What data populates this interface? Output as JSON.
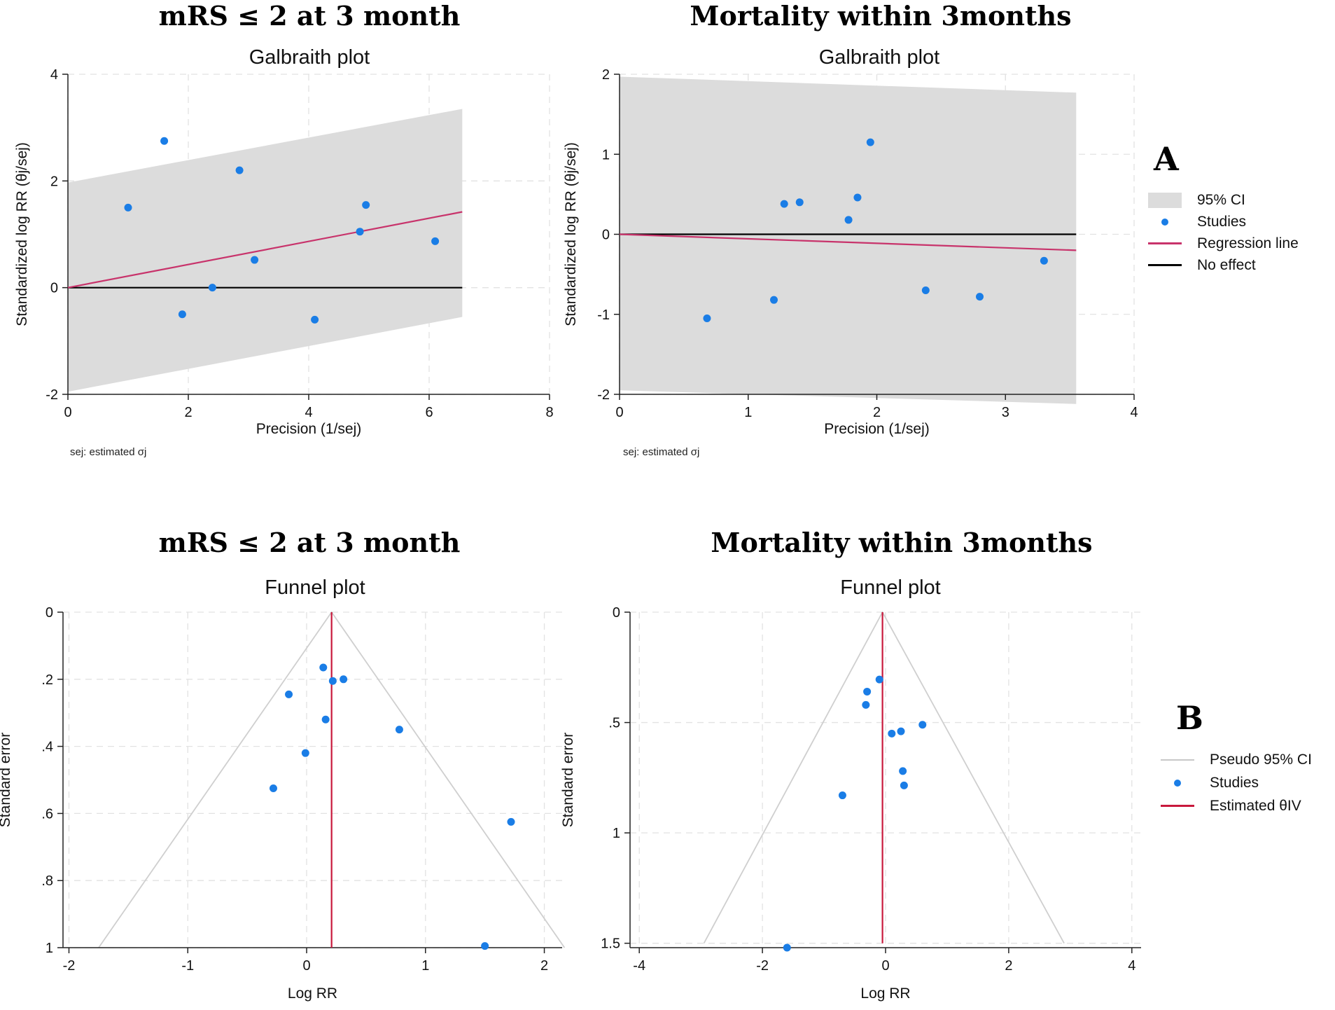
{
  "titles": {
    "top_left": "mRS ≤ 2 at 3 month",
    "top_right": "Mortality within 3months",
    "bottom_left": "mRS ≤ 2 at 3 month",
    "bottom_right": "Mortality within 3months"
  },
  "panel_letters": {
    "a": "A",
    "b": "B"
  },
  "legend_a": {
    "items": [
      {
        "label": "95% CI",
        "color": "#dcdcdc"
      },
      {
        "label": "Studies",
        "color": "#1a7de6"
      },
      {
        "label": "Regression line",
        "color": "#c8336b"
      },
      {
        "label": "No effect",
        "color": "#000000"
      }
    ]
  },
  "legend_b": {
    "items": [
      {
        "label": "Pseudo 95% CI",
        "color": "#d0d0d0"
      },
      {
        "label": "Studies",
        "color": "#1a7de6"
      },
      {
        "label": "Estimated θIV",
        "color": "#c8193c"
      }
    ]
  },
  "chart_data": [
    {
      "id": "galbraith_mrs",
      "type": "scatter",
      "title": "Galbraith plot",
      "xlabel": "Precision (1/sej)",
      "ylabel": "Standardized log RR (θj/sej)",
      "note": "sej: estimated σj",
      "xlim": [
        0,
        8
      ],
      "ylim": [
        -2,
        4
      ],
      "xticks": [
        0,
        2,
        4,
        6,
        8
      ],
      "yticks": [
        -2,
        0,
        2,
        4
      ],
      "xtick_labels": [
        "0",
        "2",
        "4",
        "6",
        "8"
      ],
      "ytick_labels": [
        "-2",
        "0",
        "2",
        "4"
      ],
      "points": [
        {
          "x": 1.0,
          "y": 1.5
        },
        {
          "x": 1.6,
          "y": 2.75
        },
        {
          "x": 1.9,
          "y": -0.5
        },
        {
          "x": 2.4,
          "y": 0.0
        },
        {
          "x": 2.85,
          "y": 2.2
        },
        {
          "x": 3.1,
          "y": 0.52
        },
        {
          "x": 4.1,
          "y": -0.6
        },
        {
          "x": 4.85,
          "y": 1.05
        },
        {
          "x": 4.95,
          "y": 1.55
        },
        {
          "x": 6.1,
          "y": 0.87
        }
      ],
      "ci_band": {
        "x": [
          0,
          6.55
        ],
        "lower": [
          -1.95,
          -0.55
        ],
        "upper": [
          1.97,
          3.35
        ]
      },
      "regression_line": {
        "x": [
          0,
          6.55
        ],
        "y": [
          0,
          1.42
        ]
      },
      "no_effect_line": {
        "x": [
          0,
          6.55
        ],
        "y": [
          0,
          0
        ]
      }
    },
    {
      "id": "galbraith_mortality",
      "type": "scatter",
      "title": "Galbraith plot",
      "xlabel": "Precision (1/sej)",
      "ylabel": "Standardized log RR (θj/sej)",
      "note": "sej: estimated σj",
      "xlim": [
        0,
        4
      ],
      "ylim": [
        -2,
        2
      ],
      "xticks": [
        0,
        1,
        2,
        3,
        4
      ],
      "yticks": [
        -2,
        -1,
        0,
        1,
        2
      ],
      "xtick_labels": [
        "0",
        "1",
        "2",
        "3",
        "4"
      ],
      "ytick_labels": [
        "-2",
        "-1",
        "0",
        "1",
        "2"
      ],
      "points": [
        {
          "x": 0.68,
          "y": -1.05
        },
        {
          "x": 1.2,
          "y": -0.82
        },
        {
          "x": 1.28,
          "y": 0.38
        },
        {
          "x": 1.4,
          "y": 0.4
        },
        {
          "x": 1.78,
          "y": 0.18
        },
        {
          "x": 1.85,
          "y": 0.46
        },
        {
          "x": 1.95,
          "y": 1.15
        },
        {
          "x": 2.38,
          "y": -0.7
        },
        {
          "x": 2.8,
          "y": -0.78
        },
        {
          "x": 3.3,
          "y": -0.33
        }
      ],
      "ci_band": {
        "x": [
          0,
          3.55
        ],
        "lower": [
          -1.95,
          -2.12
        ],
        "upper": [
          1.97,
          1.77
        ]
      },
      "regression_line": {
        "x": [
          0,
          3.55
        ],
        "y": [
          0,
          -0.2
        ]
      },
      "no_effect_line": {
        "x": [
          0,
          3.55
        ],
        "y": [
          0,
          0
        ]
      }
    },
    {
      "id": "funnel_mrs",
      "type": "scatter",
      "title": "Funnel plot",
      "xlabel": "Log RR",
      "ylabel": "Standard error",
      "xlim": [
        -2.05,
        2.15
      ],
      "ylim": [
        1.0,
        0.0
      ],
      "xticks": [
        -2,
        -1,
        0,
        1,
        2
      ],
      "yticks": [
        0,
        0.2,
        0.4,
        0.6,
        0.8,
        1
      ],
      "xtick_labels": [
        "-2",
        "-1",
        "0",
        "1",
        "2"
      ],
      "ytick_labels": [
        "0",
        ".2",
        ".4",
        ".6",
        ".8",
        "1"
      ],
      "points": [
        {
          "x": 0.14,
          "y": 0.165
        },
        {
          "x": 0.22,
          "y": 0.205
        },
        {
          "x": 0.31,
          "y": 0.2
        },
        {
          "x": -0.15,
          "y": 0.245
        },
        {
          "x": 0.16,
          "y": 0.32
        },
        {
          "x": 0.78,
          "y": 0.35
        },
        {
          "x": -0.01,
          "y": 0.42
        },
        {
          "x": -0.28,
          "y": 0.525
        },
        {
          "x": 1.72,
          "y": 0.625
        },
        {
          "x": 1.5,
          "y": 0.995
        }
      ],
      "estimate": 0.21,
      "funnel": {
        "apex": [
          0.21,
          0
        ],
        "base_se": 1.0,
        "base_left": -1.75,
        "base_right": 2.17
      }
    },
    {
      "id": "funnel_mortality",
      "type": "scatter",
      "title": "Funnel plot",
      "xlabel": "Log RR",
      "ylabel": "Standard error",
      "xlim": [
        -4.15,
        4.15
      ],
      "ylim": [
        1.52,
        0.0
      ],
      "xticks": [
        -4,
        -2,
        0,
        2,
        4
      ],
      "yticks": [
        0,
        0.5,
        1,
        1.5
      ],
      "xtick_labels": [
        "-4",
        "-2",
        "0",
        "2",
        "4"
      ],
      "ytick_labels": [
        "0",
        ".5",
        "1",
        "1.5"
      ],
      "points": [
        {
          "x": -0.1,
          "y": 0.305
        },
        {
          "x": -0.3,
          "y": 0.36
        },
        {
          "x": -0.32,
          "y": 0.42
        },
        {
          "x": 0.6,
          "y": 0.51
        },
        {
          "x": 0.25,
          "y": 0.54
        },
        {
          "x": 0.1,
          "y": 0.55
        },
        {
          "x": 0.28,
          "y": 0.72
        },
        {
          "x": 0.3,
          "y": 0.785
        },
        {
          "x": -0.7,
          "y": 0.83
        },
        {
          "x": -1.6,
          "y": 1.52
        }
      ],
      "estimate": -0.05,
      "funnel": {
        "apex": [
          -0.05,
          0
        ],
        "base_se": 1.5,
        "base_left": -2.95,
        "base_right": 2.9
      }
    }
  ]
}
